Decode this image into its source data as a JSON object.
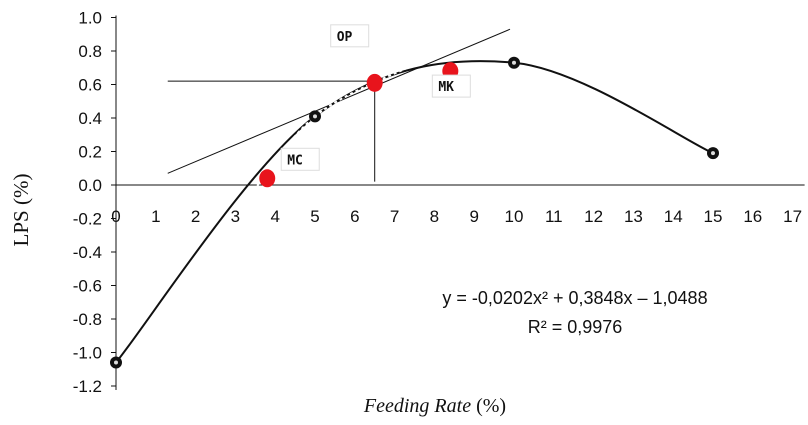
{
  "chart_data": {
    "type": "scatter",
    "xlabel_italic": "Feeding Rate",
    "xlabel_unit": "(%)",
    "ylabel": "LPS (%)",
    "xlim": [
      0,
      17
    ],
    "ylim": [
      -1.2,
      1.0
    ],
    "x_ticks": [
      "0",
      "1",
      "2",
      "3",
      "4",
      "5",
      "6",
      "7",
      "8",
      "9",
      "10",
      "11",
      "12",
      "13",
      "14",
      "15",
      "16",
      "17"
    ],
    "y_ticks": [
      "1.0",
      "0.8",
      "0.6",
      "0.4",
      "0.2",
      "0.0",
      "-0.2",
      "-0.4",
      "-0.6",
      "-0.8",
      "-1.0",
      "-1.2"
    ],
    "series": [
      {
        "type": "line",
        "points": [
          {
            "x": 0,
            "y": -1.06
          },
          {
            "x": 5,
            "y": 0.41
          },
          {
            "x": 10,
            "y": 0.73
          },
          {
            "x": 15,
            "y": 0.19
          }
        ]
      }
    ],
    "fit_equation": "y = -0,0202x² + 0,3848x – 1,0488",
    "r_squared": "R² = 0,9976",
    "highlight_points": [
      {
        "label": "MC",
        "x": 3.8,
        "y": 0.04,
        "color": "#e8141c"
      },
      {
        "label": "OP",
        "x": 6.5,
        "y": 0.61,
        "color": "#e8141c"
      },
      {
        "label": "MK",
        "x": 8.4,
        "y": 0.68,
        "color": "#e8141c"
      }
    ],
    "reference_lines": [
      {
        "kind": "tangent",
        "from": [
          1.3,
          0.07
        ],
        "to": [
          9.9,
          0.93
        ]
      },
      {
        "kind": "horizontal",
        "from": [
          1.3,
          0.62
        ],
        "to": [
          6.5,
          0.62
        ]
      },
      {
        "kind": "vertical",
        "from": [
          6.5,
          0.62
        ],
        "to": [
          6.5,
          0.02
        ]
      }
    ],
    "grid": false
  }
}
